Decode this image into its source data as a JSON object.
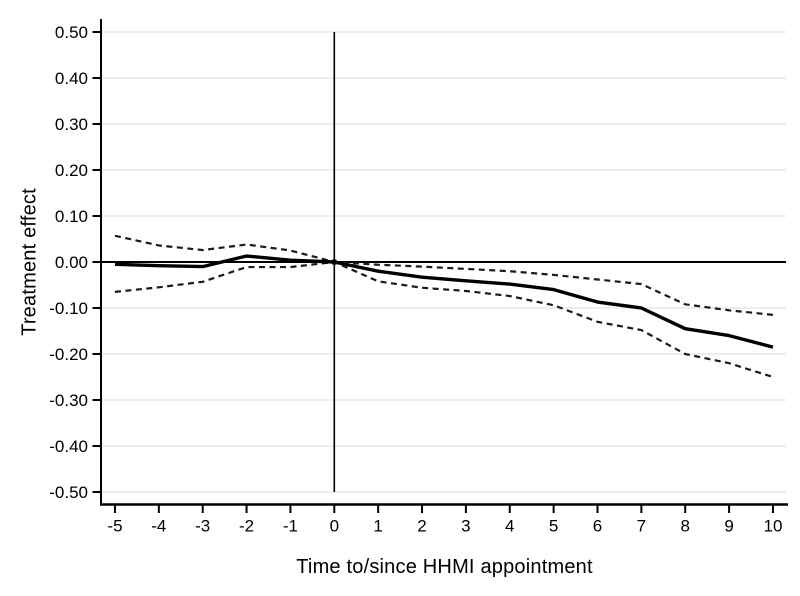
{
  "figure": {
    "background": "#ffffff",
    "text_color": "#000000"
  },
  "chart_data": {
    "type": "line",
    "title": "",
    "xlabel": "Time to/since HHMI appointment",
    "ylabel": "Treatment effect",
    "xlim": [
      -5.35,
      10.35
    ],
    "ylim": [
      -0.5,
      0.5
    ],
    "grid": {
      "horizontal": true,
      "vertical": false,
      "color": "#e2e2e2"
    },
    "legend": "none",
    "reference_lines": [
      {
        "orientation": "vertical",
        "x": 0
      },
      {
        "orientation": "horizontal",
        "y": 0
      }
    ],
    "x": [
      -5,
      -4,
      -3,
      -2,
      -1,
      0,
      1,
      2,
      3,
      4,
      5,
      6,
      7,
      8,
      9,
      10
    ],
    "x_tick_labels": [
      "-5",
      "-4",
      "-3",
      "-2",
      "-1",
      "0",
      "1",
      "2",
      "3",
      "4",
      "5",
      "6",
      "7",
      "8",
      "9",
      "10"
    ],
    "y_ticks": [
      0.5,
      0.4,
      0.3,
      0.2,
      0.1,
      0.0,
      -0.1,
      -0.2,
      -0.3,
      -0.4,
      -0.5
    ],
    "y_tick_labels": [
      "0.50",
      "0.40",
      "0.30",
      "0.20",
      "0.10",
      "0.00",
      "-0.10",
      "-0.20",
      "-0.30",
      "-0.40",
      "-0.50"
    ],
    "series": [
      {
        "name": "treatment-effect",
        "style": "solid",
        "color": "#000000",
        "values": [
          -0.005,
          -0.008,
          -0.01,
          0.013,
          0.004,
          0.0,
          -0.02,
          -0.033,
          -0.041,
          -0.048,
          -0.06,
          -0.087,
          -0.1,
          -0.145,
          -0.16,
          -0.185
        ]
      },
      {
        "name": "ci-upper",
        "style": "dashed",
        "color": "#1a1a1a",
        "values": [
          0.057,
          0.036,
          0.026,
          0.038,
          0.025,
          0.0,
          -0.006,
          -0.01,
          -0.015,
          -0.02,
          -0.028,
          -0.038,
          -0.048,
          -0.092,
          -0.105,
          -0.115
        ]
      },
      {
        "name": "ci-lower",
        "style": "dashed",
        "color": "#1a1a1a",
        "values": [
          -0.065,
          -0.055,
          -0.043,
          -0.011,
          -0.011,
          0.0,
          -0.042,
          -0.056,
          -0.063,
          -0.074,
          -0.094,
          -0.13,
          -0.148,
          -0.2,
          -0.22,
          -0.25
        ]
      }
    ]
  }
}
